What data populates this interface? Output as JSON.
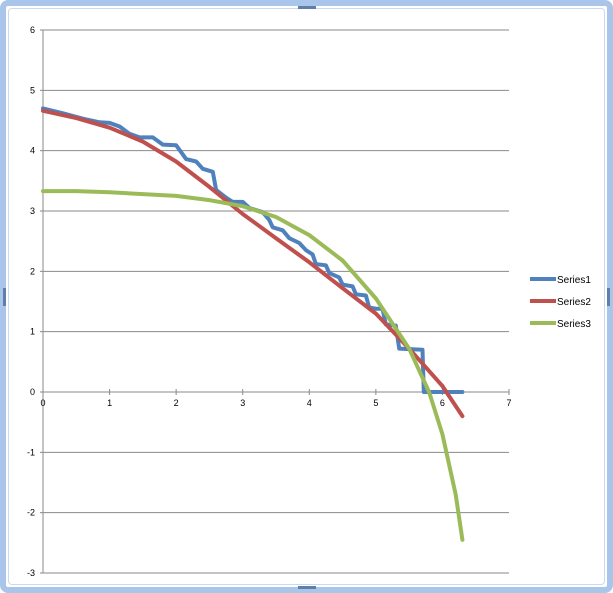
{
  "chart_data": {
    "type": "line",
    "title": "",
    "xlabel": "",
    "ylabel": "",
    "xlim": [
      0,
      7
    ],
    "ylim": [
      -3,
      6
    ],
    "x_ticks": [
      "0",
      "1",
      "2",
      "3",
      "4",
      "5",
      "6",
      "7"
    ],
    "y_ticks": [
      "6",
      "5",
      "4",
      "3",
      "2",
      "1",
      "0",
      "-1",
      "-2",
      "-3"
    ],
    "grid": "horizontal",
    "legend_position": "right",
    "series": [
      {
        "name": "Series1",
        "color": "#4f81bd",
        "points": [
          [
            0,
            4.7
          ],
          [
            0.3,
            4.62
          ],
          [
            0.6,
            4.53
          ],
          [
            0.85,
            4.47
          ],
          [
            1.0,
            4.46
          ],
          [
            1.15,
            4.4
          ],
          [
            1.3,
            4.28
          ],
          [
            1.45,
            4.22
          ],
          [
            1.65,
            4.22
          ],
          [
            1.8,
            4.1
          ],
          [
            2.0,
            4.09
          ],
          [
            2.15,
            3.86
          ],
          [
            2.3,
            3.82
          ],
          [
            2.4,
            3.7
          ],
          [
            2.55,
            3.65
          ],
          [
            2.6,
            3.35
          ],
          [
            2.75,
            3.22
          ],
          [
            2.85,
            3.15
          ],
          [
            3.0,
            3.15
          ],
          [
            3.1,
            3.05
          ],
          [
            3.3,
            2.98
          ],
          [
            3.4,
            2.85
          ],
          [
            3.45,
            2.73
          ],
          [
            3.6,
            2.68
          ],
          [
            3.7,
            2.55
          ],
          [
            3.85,
            2.47
          ],
          [
            3.95,
            2.35
          ],
          [
            4.05,
            2.28
          ],
          [
            4.1,
            2.12
          ],
          [
            4.25,
            2.1
          ],
          [
            4.3,
            1.97
          ],
          [
            4.45,
            1.9
          ],
          [
            4.5,
            1.78
          ],
          [
            4.65,
            1.75
          ],
          [
            4.7,
            1.62
          ],
          [
            4.85,
            1.6
          ],
          [
            4.9,
            1.4
          ],
          [
            5.0,
            1.38
          ],
          [
            5.1,
            1.38
          ],
          [
            5.15,
            1.12
          ],
          [
            5.3,
            1.1
          ],
          [
            5.35,
            0.72
          ],
          [
            5.7,
            0.7
          ],
          [
            5.72,
            0.0
          ],
          [
            6.3,
            0.0
          ]
        ]
      },
      {
        "name": "Series2",
        "color": "#c0504d",
        "points": [
          [
            0,
            4.66
          ],
          [
            0.5,
            4.54
          ],
          [
            1.0,
            4.38
          ],
          [
            1.5,
            4.15
          ],
          [
            2.0,
            3.82
          ],
          [
            2.5,
            3.4
          ],
          [
            3.0,
            2.95
          ],
          [
            3.5,
            2.55
          ],
          [
            4.0,
            2.15
          ],
          [
            4.5,
            1.72
          ],
          [
            5.0,
            1.3
          ],
          [
            5.5,
            0.72
          ],
          [
            6.0,
            0.1
          ],
          [
            6.3,
            -0.4
          ]
        ]
      },
      {
        "name": "Series3",
        "color": "#9bbb59",
        "points": [
          [
            0,
            3.33
          ],
          [
            0.5,
            3.33
          ],
          [
            1.0,
            3.31
          ],
          [
            1.5,
            3.28
          ],
          [
            2.0,
            3.25
          ],
          [
            2.5,
            3.18
          ],
          [
            3.0,
            3.08
          ],
          [
            3.5,
            2.9
          ],
          [
            4.0,
            2.6
          ],
          [
            4.5,
            2.18
          ],
          [
            5.0,
            1.55
          ],
          [
            5.5,
            0.72
          ],
          [
            5.8,
            0.0
          ],
          [
            6.0,
            -0.7
          ],
          [
            6.2,
            -1.7
          ],
          [
            6.3,
            -2.45
          ]
        ]
      }
    ]
  }
}
